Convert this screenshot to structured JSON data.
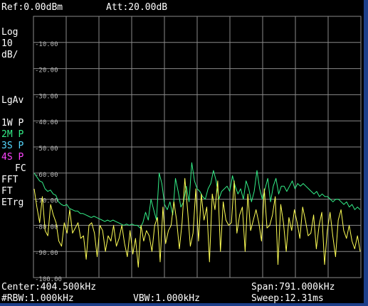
{
  "header": {
    "ref_level": "Ref:0.00dBm",
    "attenuation": "Att:20.00dB"
  },
  "side_panel": {
    "scale_type": "Log",
    "scale_value": "10",
    "scale_unit": "dB/",
    "averaging": "LgAv",
    "traces": [
      {
        "label": "1W P",
        "color": "#ffffff"
      },
      {
        "label": "2M P",
        "color": "#33ee88"
      },
      {
        "label": "3S P",
        "color": "#55d8ff"
      },
      {
        "label": "4S P",
        "color": "#ff44ff"
      }
    ],
    "fc": "FC",
    "fft": "FFT",
    "ft": "FT",
    "etrg": "ETrg"
  },
  "footer": {
    "center": "Center:404.500kHz",
    "span": "Span:791.000kHz",
    "rbw": "#RBW:1.000kHz",
    "vbw": "VBW:1.000kHz",
    "sweep": "Sweep:12.31ms"
  },
  "colors": {
    "background": "#000000",
    "grid": "#8a8a8a",
    "trace_max_hold": "#33ee88",
    "trace_live": "#ffff55",
    "frame": "#1d3f8a"
  },
  "chart_data": {
    "type": "line",
    "title": "",
    "xlabel": "",
    "ylabel": "",
    "xlim": [
      9000,
      800000
    ],
    "ylim": [
      -100,
      0
    ],
    "x_unit": "Hz",
    "y_unit": "dBm",
    "y_tick_labels": [
      "-10.00",
      "-20.00",
      "-30.00",
      "-40.00",
      "-50.00",
      "-60.00",
      "-70.00",
      "-80.00",
      "-90.00",
      "-100.00"
    ],
    "grid": true,
    "series": [
      {
        "color": "#33ee88",
        "values": [
          -60,
          -61.5,
          -63,
          -63.5,
          -66,
          -67,
          -66.5,
          -68,
          -68.5,
          -71,
          -72,
          -72.5,
          -72,
          -73.5,
          -74,
          -74.5,
          -74.5,
          -75.5,
          -75.5,
          -76,
          -76.5,
          -77,
          -76.5,
          -77,
          -77.5,
          -78,
          -78.5,
          -78,
          -78.5,
          -78,
          -78.5,
          -79,
          -79.5,
          -80,
          -79.5,
          -80,
          -79.5,
          -80,
          -80,
          -81,
          -79,
          -75,
          -78,
          -70,
          -74,
          -78,
          -60,
          -64,
          -72,
          -74,
          -71,
          -76,
          -62,
          -67,
          -73,
          -71,
          -65,
          -71,
          -56,
          -63,
          -66,
          -67,
          -69,
          -70,
          -66,
          -64,
          -59,
          -63,
          -70,
          -67,
          -66,
          -65,
          -67,
          -61,
          -65,
          -68,
          -66,
          -70,
          -63,
          -66,
          -71,
          -67,
          -59,
          -66,
          -70,
          -66,
          -62,
          -71,
          -65,
          -62,
          -68,
          -65,
          -65,
          -67,
          -65,
          -63,
          -66,
          -64,
          -65,
          -64,
          -65,
          -66,
          -67,
          -68,
          -67,
          -69,
          -68,
          -69,
          -69,
          -70,
          -71,
          -70,
          -70,
          -71,
          -72,
          -71,
          -73,
          -72,
          -74,
          -73,
          -74
        ]
      },
      {
        "color": "#ffff55",
        "values": [
          -66,
          -73,
          -79,
          -69,
          -82,
          -84,
          -72,
          -76,
          -79,
          -86,
          -88,
          -79,
          -83,
          -74,
          -83,
          -81,
          -79,
          -85,
          -84,
          -93,
          -80,
          -79,
          -83,
          -92,
          -80,
          -82,
          -90,
          -84,
          -86,
          -80,
          -88,
          -85,
          -80,
          -87,
          -92,
          -82,
          -91,
          -85,
          -96,
          -80,
          -86,
          -82,
          -84,
          -90,
          -80,
          -77,
          -94,
          -73,
          -87,
          -82,
          -80,
          -71,
          -78,
          -89,
          -79,
          -62,
          -74,
          -88,
          -83,
          -66,
          -86,
          -68,
          -78,
          -73,
          -94,
          -68,
          -74,
          -63,
          -90,
          -71,
          -78,
          -80,
          -79,
          -63,
          -83,
          -76,
          -73,
          -90,
          -68,
          -82,
          -78,
          -74,
          -79,
          -86,
          -66,
          -81,
          -80,
          -76,
          -69,
          -95,
          -72,
          -79,
          -90,
          -77,
          -82,
          -74,
          -79,
          -85,
          -73,
          -78,
          -84,
          -83,
          -76,
          -89,
          -80,
          -75,
          -95,
          -82,
          -75,
          -84,
          -92,
          -78,
          -74,
          -82,
          -85,
          -80,
          -86,
          -89,
          -84,
          -90
        ]
      }
    ]
  }
}
